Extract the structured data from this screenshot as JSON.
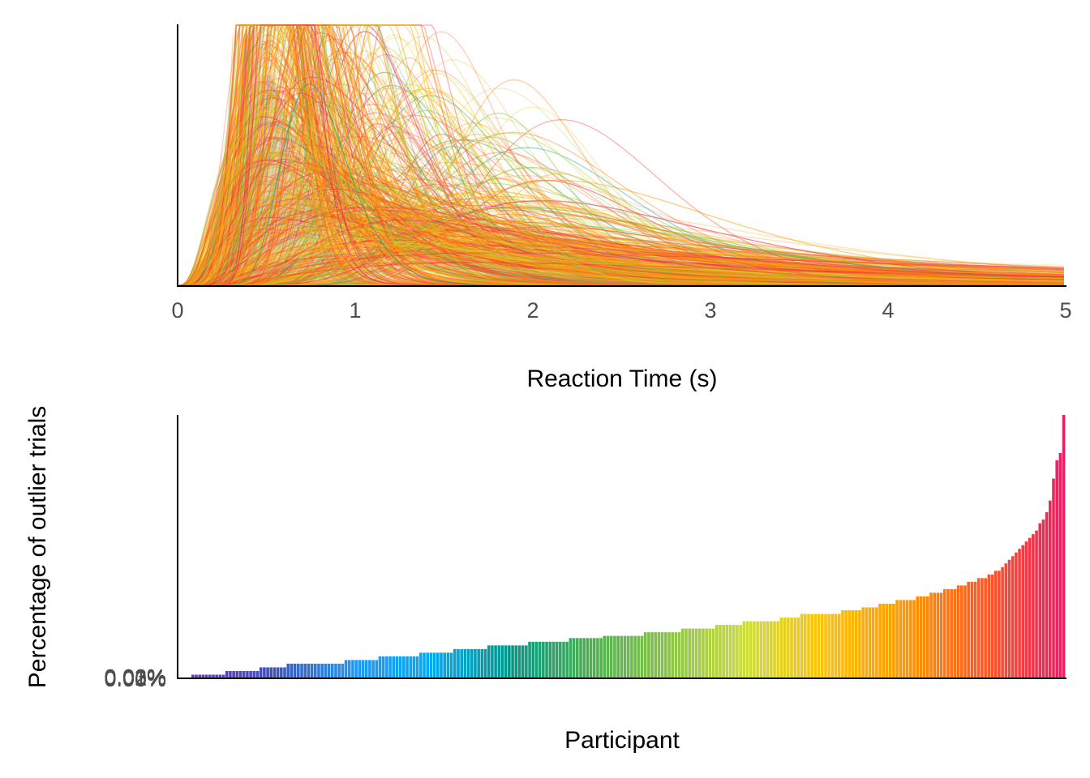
{
  "chart_data": [
    {
      "type": "line",
      "xlabel": "Reaction Time (s)",
      "ylabel": "",
      "xlim": [
        0,
        5
      ],
      "xticks": [
        "0",
        "1",
        "2",
        "3",
        "4",
        "5"
      ],
      "y_axis_labels_shown": false,
      "grid": false,
      "legend": "none",
      "curve_count_approx": 600,
      "curve_peak_rt_range_s": [
        0.45,
        1.2
      ],
      "rt_tail_max_s": 5,
      "shaded_group_density_peak_s": 0.55,
      "palette": [
        "#673ab7",
        "#3f51b5",
        "#2196f3",
        "#03a9f4",
        "#009688",
        "#4caf50",
        "#8bc34a",
        "#cddc39",
        "#ffc107",
        "#ff9800",
        "#ff5722",
        "#e91e63"
      ],
      "group_fill": "#d9d9d9"
    },
    {
      "type": "bar",
      "xlabel": "Participant",
      "ylabel": "Percentage of outlier trials",
      "yticks": [
        "0.00%",
        "0.01%",
        "0.02%",
        "0.03%"
      ],
      "ylim": [
        0,
        0.036
      ],
      "grid": false,
      "legend": "none",
      "sorted": "ascending",
      "values": [
        0.0005,
        0.0005,
        0.0005,
        0.0005,
        0.0005,
        0.0005,
        0.0005,
        0.0005,
        0.0005,
        0.0005,
        0.001,
        0.001,
        0.001,
        0.001,
        0.001,
        0.001,
        0.001,
        0.001,
        0.001,
        0.001,
        0.0015,
        0.0015,
        0.0015,
        0.0015,
        0.0015,
        0.0015,
        0.0015,
        0.0015,
        0.002,
        0.002,
        0.002,
        0.002,
        0.002,
        0.002,
        0.002,
        0.002,
        0.002,
        0.002,
        0.002,
        0.002,
        0.002,
        0.002,
        0.002,
        0.002,
        0.002,
        0.0025,
        0.0025,
        0.0025,
        0.0025,
        0.0025,
        0.0025,
        0.0025,
        0.0025,
        0.0025,
        0.0025,
        0.003,
        0.003,
        0.003,
        0.003,
        0.003,
        0.003,
        0.003,
        0.003,
        0.003,
        0.003,
        0.003,
        0.003,
        0.0035,
        0.0035,
        0.0035,
        0.0035,
        0.0035,
        0.0035,
        0.0035,
        0.0035,
        0.0035,
        0.0035,
        0.004,
        0.004,
        0.004,
        0.004,
        0.004,
        0.004,
        0.004,
        0.004,
        0.004,
        0.004,
        0.0045,
        0.0045,
        0.0045,
        0.0045,
        0.0045,
        0.0045,
        0.0045,
        0.0045,
        0.0045,
        0.0045,
        0.0045,
        0.0045,
        0.005,
        0.005,
        0.005,
        0.005,
        0.005,
        0.005,
        0.005,
        0.005,
        0.005,
        0.005,
        0.005,
        0.005,
        0.0055,
        0.0055,
        0.0055,
        0.0055,
        0.0055,
        0.0055,
        0.0055,
        0.0055,
        0.0055,
        0.0055,
        0.0058,
        0.0058,
        0.0058,
        0.0058,
        0.0058,
        0.0058,
        0.0058,
        0.0058,
        0.0058,
        0.0058,
        0.0058,
        0.0058,
        0.0063,
        0.0063,
        0.0063,
        0.0063,
        0.0063,
        0.0063,
        0.0063,
        0.0063,
        0.0063,
        0.0063,
        0.0063,
        0.0068,
        0.0068,
        0.0068,
        0.0068,
        0.0068,
        0.0068,
        0.0068,
        0.0068,
        0.0068,
        0.0068,
        0.0073,
        0.0073,
        0.0073,
        0.0073,
        0.0073,
        0.0073,
        0.0073,
        0.0073,
        0.0078,
        0.0078,
        0.0078,
        0.0078,
        0.0078,
        0.0078,
        0.0078,
        0.0078,
        0.0078,
        0.0078,
        0.0078,
        0.0083,
        0.0083,
        0.0083,
        0.0083,
        0.0083,
        0.0083,
        0.0088,
        0.0088,
        0.0088,
        0.0088,
        0.0088,
        0.0088,
        0.0088,
        0.0088,
        0.0088,
        0.0088,
        0.0088,
        0.0088,
        0.0093,
        0.0093,
        0.0093,
        0.0093,
        0.0093,
        0.0093,
        0.0097,
        0.0097,
        0.0097,
        0.0097,
        0.0097,
        0.0102,
        0.0102,
        0.0102,
        0.0102,
        0.0102,
        0.0107,
        0.0107,
        0.0107,
        0.0107,
        0.0107,
        0.0107,
        0.0112,
        0.0112,
        0.0112,
        0.0112,
        0.0117,
        0.0117,
        0.0117,
        0.0117,
        0.0122,
        0.0122,
        0.0122,
        0.0122,
        0.0127,
        0.0127,
        0.0127,
        0.0132,
        0.0132,
        0.0132,
        0.0137,
        0.0137,
        0.0137,
        0.0142,
        0.0142,
        0.0147,
        0.0147,
        0.0152,
        0.0157,
        0.0162,
        0.0167,
        0.0172,
        0.0177,
        0.0182,
        0.0187,
        0.0192,
        0.0197,
        0.0202,
        0.0212,
        0.0217,
        0.0227,
        0.0243,
        0.0273,
        0.0298,
        0.0308,
        0.036
      ],
      "palette": [
        "#673ab7",
        "#3f51b5",
        "#2196f3",
        "#03a9f4",
        "#009688",
        "#4caf50",
        "#8bc34a",
        "#cddc39",
        "#ffc107",
        "#ff9800",
        "#ff5722",
        "#e91e63"
      ]
    }
  ]
}
